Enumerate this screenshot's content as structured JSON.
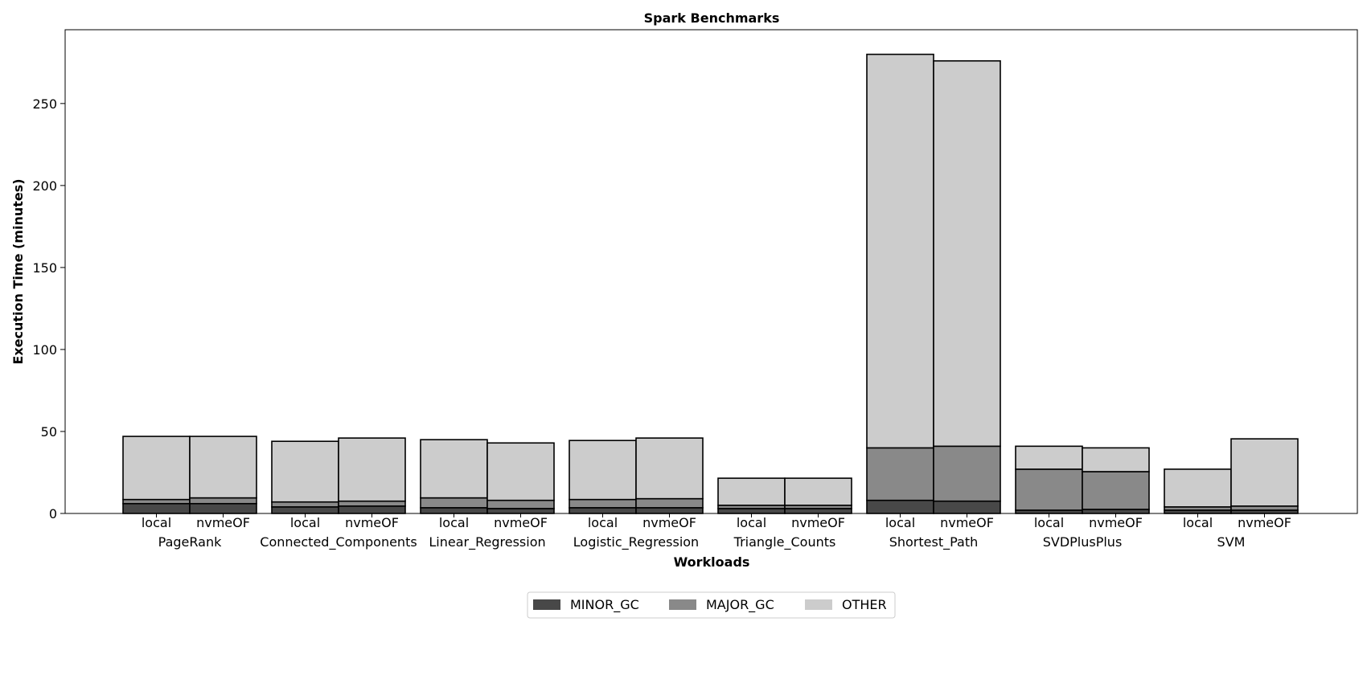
{
  "chart_data": {
    "type": "bar",
    "stacked": true,
    "title": "Spark Benchmarks",
    "xlabel": "Workloads",
    "ylabel": "Execution Time (minutes)",
    "ylim": [
      0,
      295
    ],
    "yticks": [
      0,
      50,
      100,
      150,
      200,
      250
    ],
    "grid": false,
    "legend_position": "bottom-center",
    "workloads": [
      "PageRank",
      "Connected_Components",
      "Linear_Regression",
      "Logistic_Regression",
      "Triangle_Counts",
      "Shortest_Path",
      "SVDPlusPlus",
      "SVM"
    ],
    "configs": [
      "local",
      "nvmeOF"
    ],
    "series": [
      {
        "name": "MINOR_GC",
        "color": "#484848",
        "values": [
          [
            6,
            6
          ],
          [
            4,
            4.5
          ],
          [
            3.5,
            3
          ],
          [
            3.5,
            3.5
          ],
          [
            3,
            3
          ],
          [
            8,
            7.5
          ],
          [
            2,
            2.5
          ],
          [
            2,
            2
          ]
        ]
      },
      {
        "name": "MAJOR_GC",
        "color": "#898989",
        "values": [
          [
            2.5,
            3.5
          ],
          [
            3,
            3
          ],
          [
            6,
            5
          ],
          [
            5,
            5.5
          ],
          [
            2,
            2
          ],
          [
            32,
            33.5
          ],
          [
            25,
            23
          ],
          [
            2,
            2.5
          ]
        ]
      },
      {
        "name": "OTHER",
        "color": "#cccccc",
        "values": [
          [
            38.5,
            37.5
          ],
          [
            37,
            38.5
          ],
          [
            35.5,
            35
          ],
          [
            36,
            37
          ],
          [
            16.5,
            16.5
          ],
          [
            240,
            235
          ],
          [
            14,
            14.5
          ],
          [
            23,
            41
          ]
        ]
      }
    ]
  }
}
